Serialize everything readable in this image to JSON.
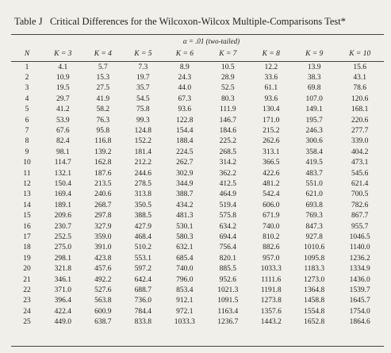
{
  "table": {
    "title": "Table J   Critical Differences for the Wilcoxon-Wilcox Multiple-Comparisons Test*",
    "subheader": "α = .01 (two-tailed)",
    "columns": [
      "N",
      "K = 3",
      "K = 4",
      "K = 5",
      "K = 6",
      "K = 7",
      "K = 8",
      "K = 9",
      "K = 10"
    ],
    "rows": [
      [
        "1",
        "4.1",
        "5.7",
        "7.3",
        "8.9",
        "10.5",
        "12.2",
        "13.9",
        "15.6"
      ],
      [
        "2",
        "10.9",
        "15.3",
        "19.7",
        "24.3",
        "28.9",
        "33.6",
        "38.3",
        "43.1"
      ],
      [
        "3",
        "19.5",
        "27.5",
        "35.7",
        "44.0",
        "52.5",
        "61.1",
        "69.8",
        "78.6"
      ],
      [
        "4",
        "29.7",
        "41.9",
        "54.5",
        "67.3",
        "80.3",
        "93.6",
        "107.0",
        "120.6"
      ],
      [
        "5",
        "41.2",
        "58.2",
        "75.8",
        "93.6",
        "111.9",
        "130.4",
        "149.1",
        "168.1"
      ],
      [
        "6",
        "53.9",
        "76.3",
        "99.3",
        "122.8",
        "146.7",
        "171.0",
        "195.7",
        "220.6"
      ],
      [
        "7",
        "67.6",
        "95.8",
        "124.8",
        "154.4",
        "184.6",
        "215.2",
        "246.3",
        "277.7"
      ],
      [
        "8",
        "82.4",
        "116.8",
        "152.2",
        "188.4",
        "225.2",
        "262.6",
        "300.6",
        "339.0"
      ],
      [
        "9",
        "98.1",
        "139.2",
        "181.4",
        "224.5",
        "268.5",
        "313.1",
        "358.4",
        "404.2"
      ],
      [
        "10",
        "114.7",
        "162.8",
        "212.2",
        "262.7",
        "314.2",
        "366.5",
        "419.5",
        "473.1"
      ],
      [
        "11",
        "132.1",
        "187.6",
        "244.6",
        "302.9",
        "362.2",
        "422.6",
        "483.7",
        "545.6"
      ],
      [
        "12",
        "150.4",
        "213.5",
        "278.5",
        "344.9",
        "412.5",
        "481.2",
        "551.0",
        "621.4"
      ],
      [
        "13",
        "169.4",
        "240.6",
        "313.8",
        "388.7",
        "464.9",
        "542.4",
        "621.0",
        "700.5"
      ],
      [
        "14",
        "189.1",
        "268.7",
        "350.5",
        "434.2",
        "519.4",
        "606.0",
        "693.8",
        "782.6"
      ],
      [
        "15",
        "209.6",
        "297.8",
        "388.5",
        "481.3",
        "575.8",
        "671.9",
        "769.3",
        "867.7"
      ],
      [
        "16",
        "230.7",
        "327.9",
        "427.9",
        "530.1",
        "634.2",
        "740.0",
        "847.3",
        "955.7"
      ],
      [
        "17",
        "252.5",
        "359.0",
        "468.4",
        "580.3",
        "694.4",
        "810.2",
        "927.8",
        "1046.5"
      ],
      [
        "18",
        "275.0",
        "391.0",
        "510.2",
        "632.1",
        "756.4",
        "882.6",
        "1010.6",
        "1140.0"
      ],
      [
        "19",
        "298.1",
        "423.8",
        "553.1",
        "685.4",
        "820.1",
        "957.0",
        "1095.8",
        "1236.2"
      ],
      [
        "20",
        "321.8",
        "457.6",
        "597.2",
        "740.0",
        "885.5",
        "1033.3",
        "1183.3",
        "1334.9"
      ],
      [
        "21",
        "346.1",
        "492.2",
        "642.4",
        "796.0",
        "952.6",
        "1111.6",
        "1273.0",
        "1436.0"
      ],
      [
        "22",
        "371.0",
        "527.6",
        "688.7",
        "853.4",
        "1021.3",
        "1191.8",
        "1364.8",
        "1539.7"
      ],
      [
        "23",
        "396.4",
        "563.8",
        "736.0",
        "912.1",
        "1091.5",
        "1273.8",
        "1458.8",
        "1645.7"
      ],
      [
        "24",
        "422.4",
        "600.9",
        "784.4",
        "972.1",
        "1163.4",
        "1357.6",
        "1554.8",
        "1754.0"
      ],
      [
        "25",
        "449.0",
        "638.7",
        "833.8",
        "1033.3",
        "1236.7",
        "1443.2",
        "1652.8",
        "1864.6"
      ]
    ]
  }
}
